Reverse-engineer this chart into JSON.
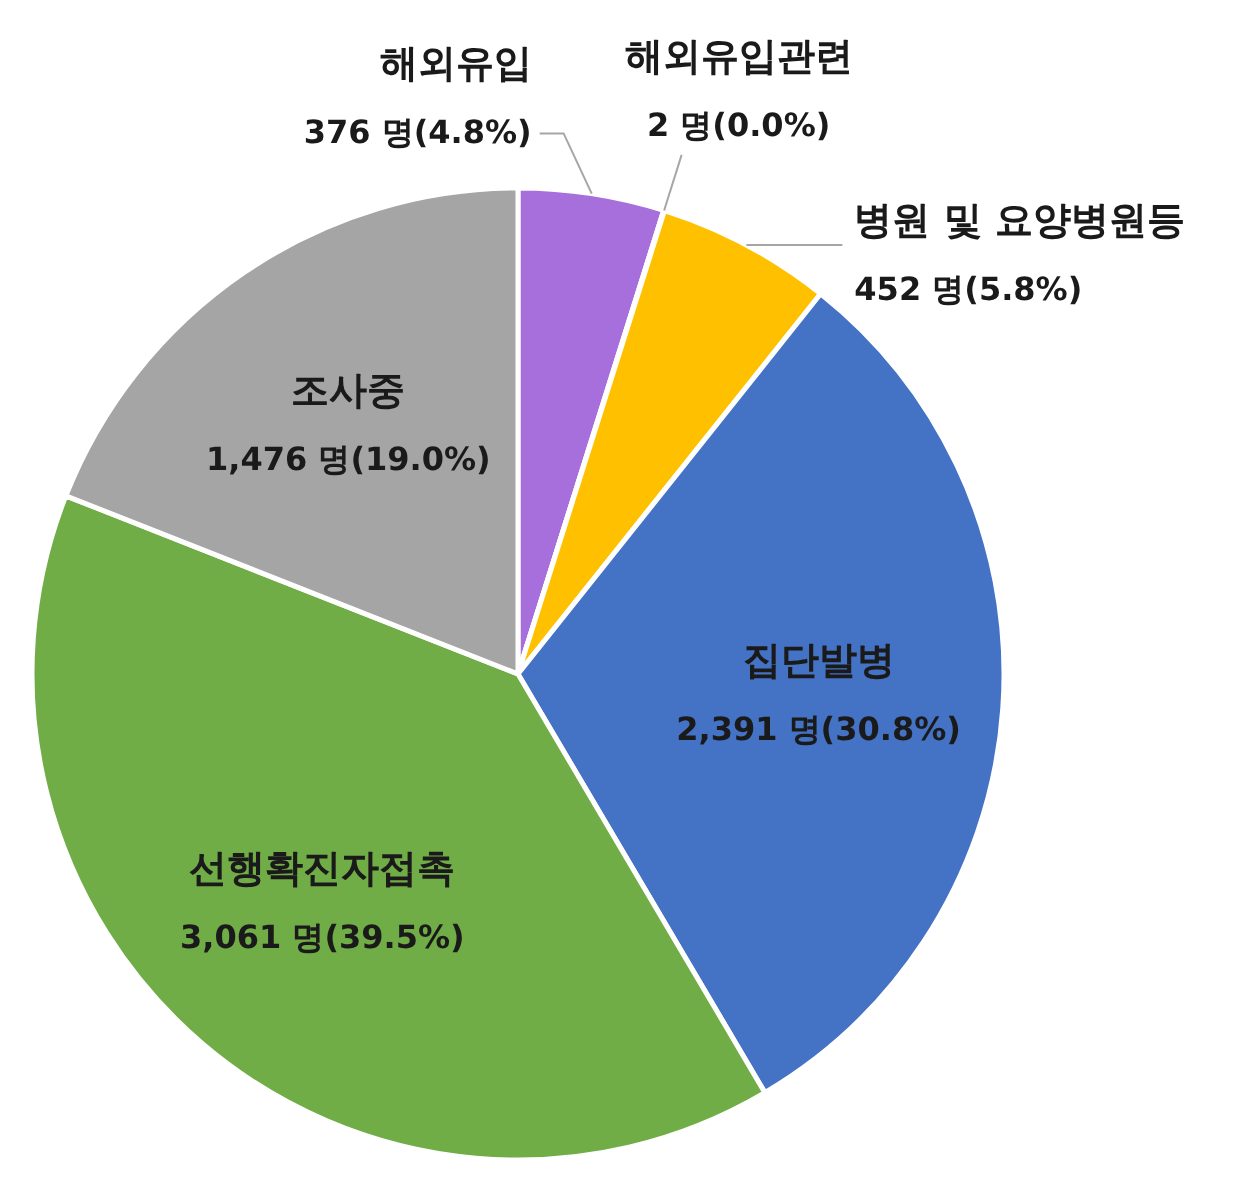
{
  "chart_data": {
    "type": "pie",
    "categories": [
      "해외유입",
      "해외유입관련",
      "병원 및 요양병원등",
      "집단발병",
      "선행확진자접촉",
      "조사중"
    ],
    "values": [
      376,
      2,
      452,
      2391,
      3061,
      1476
    ],
    "value_labels": [
      "376 명(4.8%)",
      "2 명(0.0%)",
      "452 명(5.8%)",
      "2,391 명(30.8%)",
      "3,061 명(39.5%)",
      "1,476 명(19.0%)"
    ],
    "colors": [
      "#a76fdc",
      "#ed7d31",
      "#ffc000",
      "#4472c4",
      "#70ad47",
      "#a5a5a5"
    ]
  }
}
